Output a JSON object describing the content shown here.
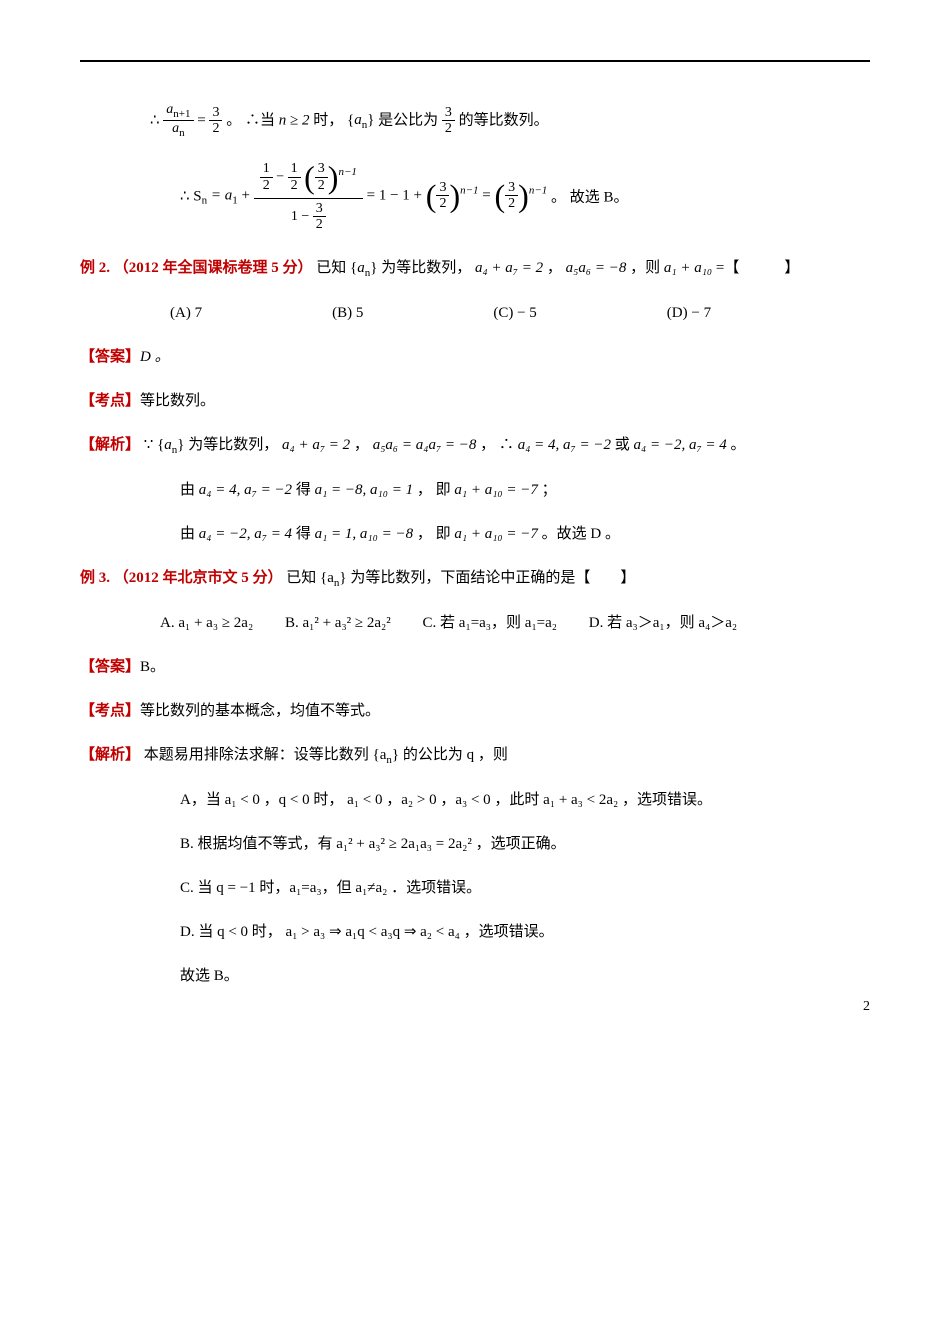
{
  "intro1_prefix": "∴ ",
  "intro1_after": " 。 ∴当 ",
  "intro1_cond": " 时， ",
  "intro1_seqpre": " 是公比为 ",
  "intro1_seqpost": " 的等比数列。",
  "frac_an1_an_num": "a",
  "frac_an1_an_sub1": "n+1",
  "frac_an1_an_den": "a",
  "frac_an1_an_sub2": "n",
  "three_halves_num": "3",
  "three_halves_den": "2",
  "n_ge_2": "n ≥ 2",
  "seq_an": "a",
  "seq_an_sub": "n",
  "sn_eq": "∴ S",
  "sn_sub": "n",
  "sn_mid": " = a",
  "sn_a1sub": "1",
  "sn_plus": " + ",
  "sn_result": " = 1 − 1 + ",
  "sn_eq2": " = ",
  "sn_end": " 。 故选 B。",
  "half_num": "1",
  "half_den": "2",
  "nminus1": "n−1",
  "one_minus": "1 − ",
  "ex2_label": "例 2.  （2012 年全国课标卷理 5 分）",
  "ex2_body1": "已知",
  "ex2_body2": " 为等比数列，",
  "ex2_eq1": "a₄ + a₇ = 2",
  "ex2_comma1": " ，",
  "ex2_eq2": "a₅a₆ = −8",
  "ex2_comma2": " ，则 ",
  "ex2_eq3": "a₁ + a₁₀",
  "ex2_tail": " =【　　　】",
  "ex2_optA": "(A) 7",
  "ex2_optB": "(B)  5",
  "ex2_optC": "(C) − 5",
  "ex2_optD": "(D) − 7",
  "ans_label": "【答案】",
  "ex2_ans": "D 。",
  "kd_label": "【考点】",
  "ex2_kd": "等比数列。",
  "jx_label": "【解析】",
  "ex2_jx1": "∵",
  "ex2_jx2": " 为等比数列， ",
  "ex2_jx_eq1": "a₄ + a₇ = 2",
  "ex2_jx_c1": " ， ",
  "ex2_jx_eq2": "a₅a₆ = a₄a₇ = −8",
  "ex2_jx_c2": " ， ∴  ",
  "ex2_jx_eq3": "a₄ = 4, a₇ = −2",
  "ex2_jx_or": " 或 ",
  "ex2_jx_eq4": "a₄ = −2, a₇ = 4",
  "ex2_jx_end1": " 。",
  "ex2_line2_pre": "由  ",
  "ex2_line2_eq1": "a₄ = 4, a₇ = −2",
  "ex2_line2_mid": " 得 ",
  "ex2_line2_eq2": "a₁ = −8, a₁₀ = 1",
  "ex2_line2_mid2": " ， 即 ",
  "ex2_line2_eq3": "a₁ + a₁₀ = −7",
  "ex2_line2_end": " ；",
  "ex2_line3_eq1": "a₄ = −2, a₇ = 4",
  "ex2_line3_eq2": "a₁ = 1, a₁₀ = −8",
  "ex2_line3_eq3": "a₁ + a₁₀ = −7",
  "ex2_line3_end": " 。故选 D 。",
  "ex3_label": "例 3.  （2012 年北京市文 5 分）",
  "ex3_body1": "已知",
  "ex3_body2": " 为等比数列，下面结论中正确的是【　　】",
  "ex3_optA": "A.  a₁ + a₃ ≥ 2a₂",
  "ex3_optB": "B.   a₁² + a₃² ≥ 2a₂²",
  "ex3_optC": "C. 若 a₁=a₃，则 a₁=a₂",
  "ex3_optD": "D. 若 a₃＞a₁，则 a₄＞a₂",
  "ex3_ans": "B。",
  "ex3_kd": "等比数列的基本概念，均值不等式。",
  "ex3_jx": "本题易用排除法求解：设等比数列",
  "ex3_jx2": " 的公比为 q ，则",
  "ex3_A": "A，当 a₁ < 0 ，q < 0 时， a₁ < 0 ，a₂ > 0 ，a₃ < 0 ，此时 a₁ + a₃ < 2a₂ ，选项错误。",
  "ex3_B": "B.  根据均值不等式，有 a₁² + a₃² ≥ 2a₁a₃ = 2a₂² ，选项正确。",
  "ex3_C": "C.  当 q = −1 时，a₁=a₃，但 a₁≠a₂ ．选项错误。",
  "ex3_D": "D.  当 q < 0 时， a₁ > a₃ ⇒ a₁q < a₃q ⇒ a₂ < a₄ ，选项错误。",
  "ex3_final": "故选 B。",
  "pagenum": "2",
  "colors": {
    "red": "#c00000",
    "text": "#000000",
    "bg": "#ffffff"
  }
}
